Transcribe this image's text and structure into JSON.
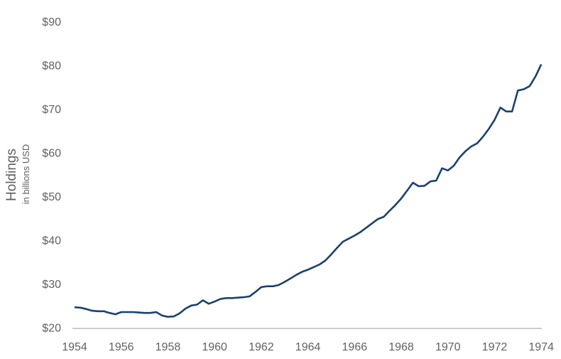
{
  "chart_data": {
    "type": "line",
    "ylabel": "Holdings",
    "ylabel_sub": "in billions USD",
    "x": [
      1954.0,
      1954.25,
      1954.5,
      1954.75,
      1955.0,
      1955.25,
      1955.5,
      1955.75,
      1956.0,
      1956.25,
      1956.5,
      1956.75,
      1957.0,
      1957.25,
      1957.5,
      1957.75,
      1958.0,
      1958.25,
      1958.5,
      1958.75,
      1959.0,
      1959.25,
      1959.5,
      1959.75,
      1960.0,
      1960.25,
      1960.5,
      1960.75,
      1961.0,
      1961.25,
      1961.5,
      1961.75,
      1962.0,
      1962.25,
      1962.5,
      1962.75,
      1963.0,
      1963.25,
      1963.5,
      1963.75,
      1964.0,
      1964.25,
      1964.5,
      1964.75,
      1965.0,
      1965.25,
      1965.5,
      1965.75,
      1966.0,
      1966.25,
      1966.5,
      1966.75,
      1967.0,
      1967.25,
      1967.5,
      1967.75,
      1968.0,
      1968.25,
      1968.5,
      1968.75,
      1969.0,
      1969.25,
      1969.5,
      1969.75,
      1970.0,
      1970.25,
      1970.5,
      1970.75,
      1971.0,
      1971.25,
      1971.5,
      1971.75,
      1972.0,
      1972.25,
      1972.5,
      1972.75,
      1973.0,
      1973.25,
      1973.5,
      1973.75,
      1974.0
    ],
    "values": [
      24.6,
      24.5,
      24.2,
      23.8,
      23.7,
      23.7,
      23.3,
      23.0,
      23.5,
      23.5,
      23.5,
      23.4,
      23.3,
      23.3,
      23.5,
      22.7,
      22.4,
      22.5,
      23.2,
      24.3,
      25.0,
      25.2,
      26.2,
      25.4,
      25.9,
      26.5,
      26.7,
      26.7,
      26.8,
      26.9,
      27.1,
      28.1,
      29.2,
      29.4,
      29.4,
      29.7,
      30.4,
      31.2,
      32.0,
      32.7,
      33.2,
      33.8,
      34.4,
      35.3,
      36.7,
      38.2,
      39.6,
      40.3,
      41.0,
      41.8,
      42.8,
      43.8,
      44.8,
      45.3,
      46.7,
      48.0,
      49.5,
      51.3,
      53.1,
      52.3,
      52.4,
      53.4,
      53.6,
      56.4,
      55.9,
      57.0,
      58.9,
      60.3,
      61.4,
      62.1,
      63.6,
      65.4,
      67.5,
      70.3,
      69.4,
      69.4,
      74.2,
      74.5,
      75.2,
      77.4,
      80.2
    ],
    "x_ticks": {
      "values": [
        1954,
        1956,
        1958,
        1960,
        1962,
        1964,
        1966,
        1968,
        1970,
        1972,
        1974
      ],
      "labels": [
        "1954",
        "1956",
        "1958",
        "1960",
        "1962",
        "1964",
        "1966",
        "1968",
        "1970",
        "1972",
        "1974"
      ]
    },
    "y_ticks": {
      "values": [
        20,
        30,
        40,
        50,
        60,
        70,
        80,
        90
      ],
      "labels": [
        "$20",
        "$30",
        "$40",
        "$50",
        "$60",
        "$70",
        "$80",
        "$90"
      ]
    },
    "xlim": [
      1954,
      1974
    ],
    "ylim": [
      20,
      90
    ],
    "grid": false,
    "legend": "none",
    "line_color": "#1a416f",
    "tick_text_color": "#616161",
    "axis_title_color": "#5f5f5f",
    "baseline_color": "#acacac"
  }
}
